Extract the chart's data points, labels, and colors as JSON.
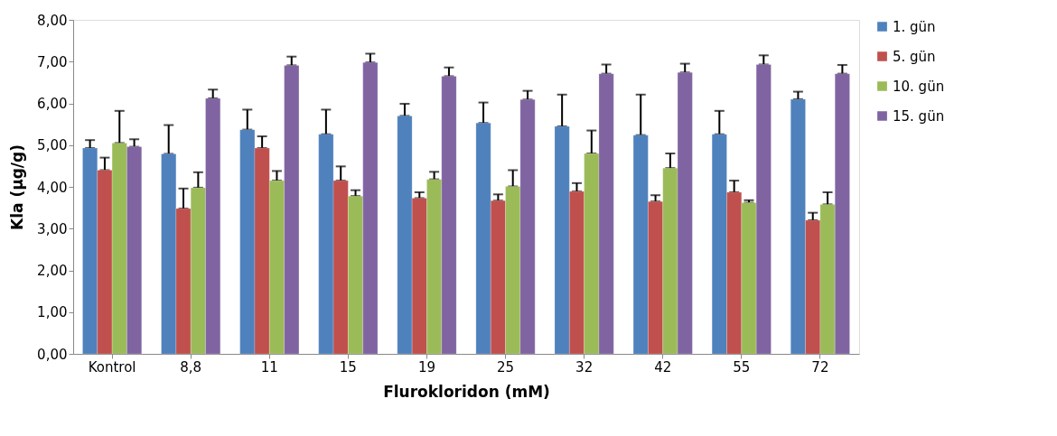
{
  "chart_data": {
    "type": "bar",
    "xlabel": "Flurokloridon (mM)",
    "ylabel": "Kla (µg/g)",
    "categories": [
      "Kontrol",
      "8,8",
      "11",
      "15",
      "19",
      "25",
      "32",
      "42",
      "55",
      "72"
    ],
    "series": [
      {
        "name": "1. gün",
        "color": "#4f81bd",
        "values": [
          4.93,
          4.79,
          5.37,
          5.26,
          5.7,
          5.53,
          5.45,
          5.24,
          5.26,
          6.1
        ],
        "errors": [
          [
            4.93,
            5.12
          ],
          [
            4.79,
            5.48
          ],
          [
            5.37,
            5.85
          ],
          [
            5.26,
            5.85
          ],
          [
            5.7,
            5.99
          ],
          [
            5.53,
            6.02
          ],
          [
            5.45,
            6.21
          ],
          [
            5.24,
            6.21
          ],
          [
            5.26,
            5.82
          ],
          [
            6.1,
            6.28
          ]
        ]
      },
      {
        "name": "5. gün",
        "color": "#c0504d",
        "values": [
          4.4,
          3.48,
          4.93,
          4.15,
          3.73,
          3.67,
          3.89,
          3.65,
          3.87,
          3.2
        ],
        "errors": [
          [
            4.4,
            4.7
          ],
          [
            3.48,
            3.96
          ],
          [
            4.93,
            5.21
          ],
          [
            4.15,
            4.49
          ],
          [
            3.73,
            3.87
          ],
          [
            3.67,
            3.82
          ],
          [
            3.89,
            4.09
          ],
          [
            3.65,
            3.8
          ],
          [
            3.87,
            4.15
          ],
          [
            3.2,
            3.38
          ]
        ]
      },
      {
        "name": "10. gün",
        "color": "#9bbb59",
        "values": [
          5.05,
          3.98,
          4.15,
          3.78,
          4.18,
          4.01,
          4.8,
          4.45,
          3.62,
          3.58
        ],
        "errors": [
          [
            5.05,
            5.82
          ],
          [
            3.98,
            4.35
          ],
          [
            4.15,
            4.38
          ],
          [
            3.78,
            3.92
          ],
          [
            4.18,
            4.36
          ],
          [
            4.01,
            4.4
          ],
          [
            4.8,
            5.35
          ],
          [
            4.45,
            4.8
          ],
          [
            3.62,
            3.68
          ],
          [
            3.58,
            3.87
          ]
        ]
      },
      {
        "name": "15. gün",
        "color": "#8064a2",
        "values": [
          4.96,
          6.12,
          6.91,
          6.98,
          6.65,
          6.09,
          6.71,
          6.74,
          6.93,
          6.71
        ],
        "errors": [
          [
            4.96,
            5.14
          ],
          [
            6.12,
            6.33
          ],
          [
            6.91,
            7.12
          ],
          [
            6.98,
            7.19
          ],
          [
            6.65,
            6.86
          ],
          [
            6.09,
            6.3
          ],
          [
            6.71,
            6.93
          ],
          [
            6.74,
            6.95
          ],
          [
            6.93,
            7.15
          ],
          [
            6.71,
            6.92
          ]
        ]
      }
    ],
    "ylim": [
      0,
      8
    ],
    "yticks": [
      {
        "value": 0,
        "label": "0,00"
      },
      {
        "value": 1,
        "label": "1,00"
      },
      {
        "value": 2,
        "label": "2,00"
      },
      {
        "value": 3,
        "label": "3,00"
      },
      {
        "value": 4,
        "label": "4,00"
      },
      {
        "value": 5,
        "label": "5,00"
      },
      {
        "value": 6,
        "label": "6,00"
      },
      {
        "value": 7,
        "label": "7,00"
      },
      {
        "value": 8,
        "label": "8,00"
      }
    ],
    "grid": false,
    "legend": "right"
  }
}
